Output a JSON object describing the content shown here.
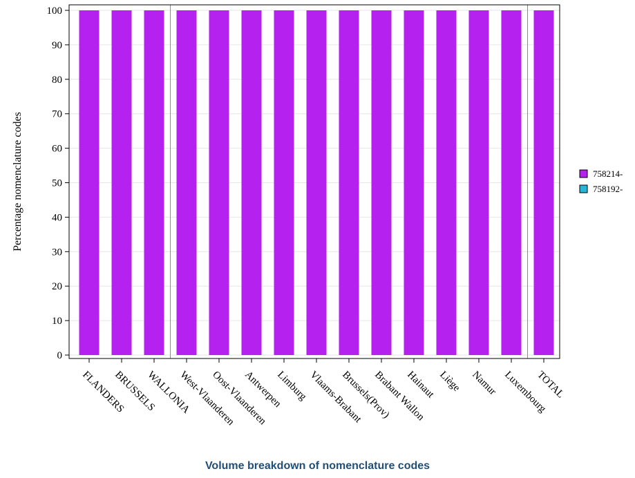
{
  "chart_data": {
    "type": "bar",
    "stacked": true,
    "ylabel": "Percentage nomenclature codes",
    "ylim": [
      0,
      100
    ],
    "yticks": [
      0,
      10,
      20,
      30,
      40,
      50,
      60,
      70,
      80,
      90,
      100
    ],
    "categories": [
      "FLANDERS",
      "BRUSSELS",
      "WALLONIA",
      "West-Vlaanderen",
      "Oost-Vlaanderen",
      "Antwerpen",
      "Limburg",
      "Vlaams-Brabant",
      "Brussels(Prov)",
      "Brabant Wallon",
      "Hainaut",
      "Liège",
      "Namur",
      "Luxembourg",
      "TOTAL"
    ],
    "series": [
      {
        "name": "758214-",
        "color": "#b522f0",
        "values": [
          100,
          100,
          100,
          100,
          100,
          100,
          100,
          100,
          100,
          100,
          100,
          100,
          100,
          100,
          100
        ]
      },
      {
        "name": "758192-",
        "color": "#29b6d6",
        "values": [
          0,
          0,
          0,
          0,
          0,
          0,
          0,
          0,
          0,
          0,
          0,
          0,
          0,
          0,
          0
        ]
      }
    ],
    "grid": true,
    "legend_position": "right"
  },
  "caption": "Volume breakdown of nomenclature codes"
}
